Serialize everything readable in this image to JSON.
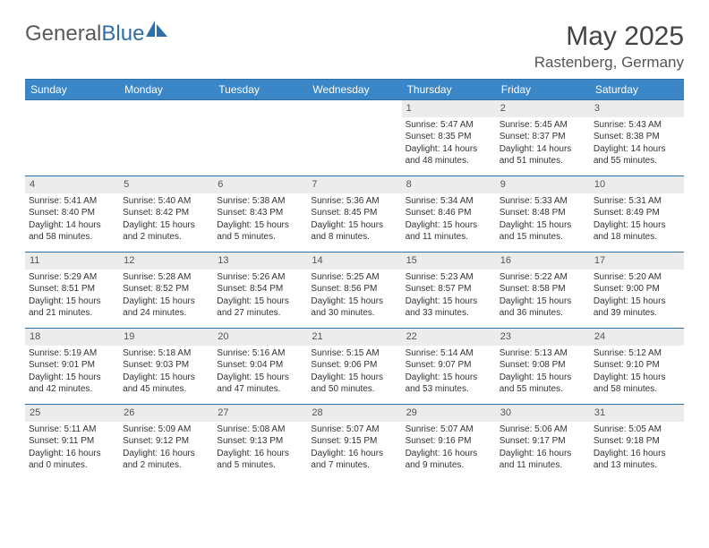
{
  "brand": {
    "part1": "General",
    "part2": "Blue"
  },
  "title": "May 2025",
  "location": "Rastenberg, Germany",
  "colors": {
    "header_bg": "#3a86c6",
    "border": "#2f6fa8",
    "daynum_bg": "#ececec",
    "text": "#333333",
    "title": "#444444"
  },
  "weekdays": [
    "Sunday",
    "Monday",
    "Tuesday",
    "Wednesday",
    "Thursday",
    "Friday",
    "Saturday"
  ],
  "weeks": [
    [
      null,
      null,
      null,
      null,
      {
        "n": "1",
        "sr": "Sunrise: 5:47 AM",
        "ss": "Sunset: 8:35 PM",
        "dl1": "Daylight: 14 hours",
        "dl2": "and 48 minutes."
      },
      {
        "n": "2",
        "sr": "Sunrise: 5:45 AM",
        "ss": "Sunset: 8:37 PM",
        "dl1": "Daylight: 14 hours",
        "dl2": "and 51 minutes."
      },
      {
        "n": "3",
        "sr": "Sunrise: 5:43 AM",
        "ss": "Sunset: 8:38 PM",
        "dl1": "Daylight: 14 hours",
        "dl2": "and 55 minutes."
      }
    ],
    [
      {
        "n": "4",
        "sr": "Sunrise: 5:41 AM",
        "ss": "Sunset: 8:40 PM",
        "dl1": "Daylight: 14 hours",
        "dl2": "and 58 minutes."
      },
      {
        "n": "5",
        "sr": "Sunrise: 5:40 AM",
        "ss": "Sunset: 8:42 PM",
        "dl1": "Daylight: 15 hours",
        "dl2": "and 2 minutes."
      },
      {
        "n": "6",
        "sr": "Sunrise: 5:38 AM",
        "ss": "Sunset: 8:43 PM",
        "dl1": "Daylight: 15 hours",
        "dl2": "and 5 minutes."
      },
      {
        "n": "7",
        "sr": "Sunrise: 5:36 AM",
        "ss": "Sunset: 8:45 PM",
        "dl1": "Daylight: 15 hours",
        "dl2": "and 8 minutes."
      },
      {
        "n": "8",
        "sr": "Sunrise: 5:34 AM",
        "ss": "Sunset: 8:46 PM",
        "dl1": "Daylight: 15 hours",
        "dl2": "and 11 minutes."
      },
      {
        "n": "9",
        "sr": "Sunrise: 5:33 AM",
        "ss": "Sunset: 8:48 PM",
        "dl1": "Daylight: 15 hours",
        "dl2": "and 15 minutes."
      },
      {
        "n": "10",
        "sr": "Sunrise: 5:31 AM",
        "ss": "Sunset: 8:49 PM",
        "dl1": "Daylight: 15 hours",
        "dl2": "and 18 minutes."
      }
    ],
    [
      {
        "n": "11",
        "sr": "Sunrise: 5:29 AM",
        "ss": "Sunset: 8:51 PM",
        "dl1": "Daylight: 15 hours",
        "dl2": "and 21 minutes."
      },
      {
        "n": "12",
        "sr": "Sunrise: 5:28 AM",
        "ss": "Sunset: 8:52 PM",
        "dl1": "Daylight: 15 hours",
        "dl2": "and 24 minutes."
      },
      {
        "n": "13",
        "sr": "Sunrise: 5:26 AM",
        "ss": "Sunset: 8:54 PM",
        "dl1": "Daylight: 15 hours",
        "dl2": "and 27 minutes."
      },
      {
        "n": "14",
        "sr": "Sunrise: 5:25 AM",
        "ss": "Sunset: 8:56 PM",
        "dl1": "Daylight: 15 hours",
        "dl2": "and 30 minutes."
      },
      {
        "n": "15",
        "sr": "Sunrise: 5:23 AM",
        "ss": "Sunset: 8:57 PM",
        "dl1": "Daylight: 15 hours",
        "dl2": "and 33 minutes."
      },
      {
        "n": "16",
        "sr": "Sunrise: 5:22 AM",
        "ss": "Sunset: 8:58 PM",
        "dl1": "Daylight: 15 hours",
        "dl2": "and 36 minutes."
      },
      {
        "n": "17",
        "sr": "Sunrise: 5:20 AM",
        "ss": "Sunset: 9:00 PM",
        "dl1": "Daylight: 15 hours",
        "dl2": "and 39 minutes."
      }
    ],
    [
      {
        "n": "18",
        "sr": "Sunrise: 5:19 AM",
        "ss": "Sunset: 9:01 PM",
        "dl1": "Daylight: 15 hours",
        "dl2": "and 42 minutes."
      },
      {
        "n": "19",
        "sr": "Sunrise: 5:18 AM",
        "ss": "Sunset: 9:03 PM",
        "dl1": "Daylight: 15 hours",
        "dl2": "and 45 minutes."
      },
      {
        "n": "20",
        "sr": "Sunrise: 5:16 AM",
        "ss": "Sunset: 9:04 PM",
        "dl1": "Daylight: 15 hours",
        "dl2": "and 47 minutes."
      },
      {
        "n": "21",
        "sr": "Sunrise: 5:15 AM",
        "ss": "Sunset: 9:06 PM",
        "dl1": "Daylight: 15 hours",
        "dl2": "and 50 minutes."
      },
      {
        "n": "22",
        "sr": "Sunrise: 5:14 AM",
        "ss": "Sunset: 9:07 PM",
        "dl1": "Daylight: 15 hours",
        "dl2": "and 53 minutes."
      },
      {
        "n": "23",
        "sr": "Sunrise: 5:13 AM",
        "ss": "Sunset: 9:08 PM",
        "dl1": "Daylight: 15 hours",
        "dl2": "and 55 minutes."
      },
      {
        "n": "24",
        "sr": "Sunrise: 5:12 AM",
        "ss": "Sunset: 9:10 PM",
        "dl1": "Daylight: 15 hours",
        "dl2": "and 58 minutes."
      }
    ],
    [
      {
        "n": "25",
        "sr": "Sunrise: 5:11 AM",
        "ss": "Sunset: 9:11 PM",
        "dl1": "Daylight: 16 hours",
        "dl2": "and 0 minutes."
      },
      {
        "n": "26",
        "sr": "Sunrise: 5:09 AM",
        "ss": "Sunset: 9:12 PM",
        "dl1": "Daylight: 16 hours",
        "dl2": "and 2 minutes."
      },
      {
        "n": "27",
        "sr": "Sunrise: 5:08 AM",
        "ss": "Sunset: 9:13 PM",
        "dl1": "Daylight: 16 hours",
        "dl2": "and 5 minutes."
      },
      {
        "n": "28",
        "sr": "Sunrise: 5:07 AM",
        "ss": "Sunset: 9:15 PM",
        "dl1": "Daylight: 16 hours",
        "dl2": "and 7 minutes."
      },
      {
        "n": "29",
        "sr": "Sunrise: 5:07 AM",
        "ss": "Sunset: 9:16 PM",
        "dl1": "Daylight: 16 hours",
        "dl2": "and 9 minutes."
      },
      {
        "n": "30",
        "sr": "Sunrise: 5:06 AM",
        "ss": "Sunset: 9:17 PM",
        "dl1": "Daylight: 16 hours",
        "dl2": "and 11 minutes."
      },
      {
        "n": "31",
        "sr": "Sunrise: 5:05 AM",
        "ss": "Sunset: 9:18 PM",
        "dl1": "Daylight: 16 hours",
        "dl2": "and 13 minutes."
      }
    ]
  ]
}
